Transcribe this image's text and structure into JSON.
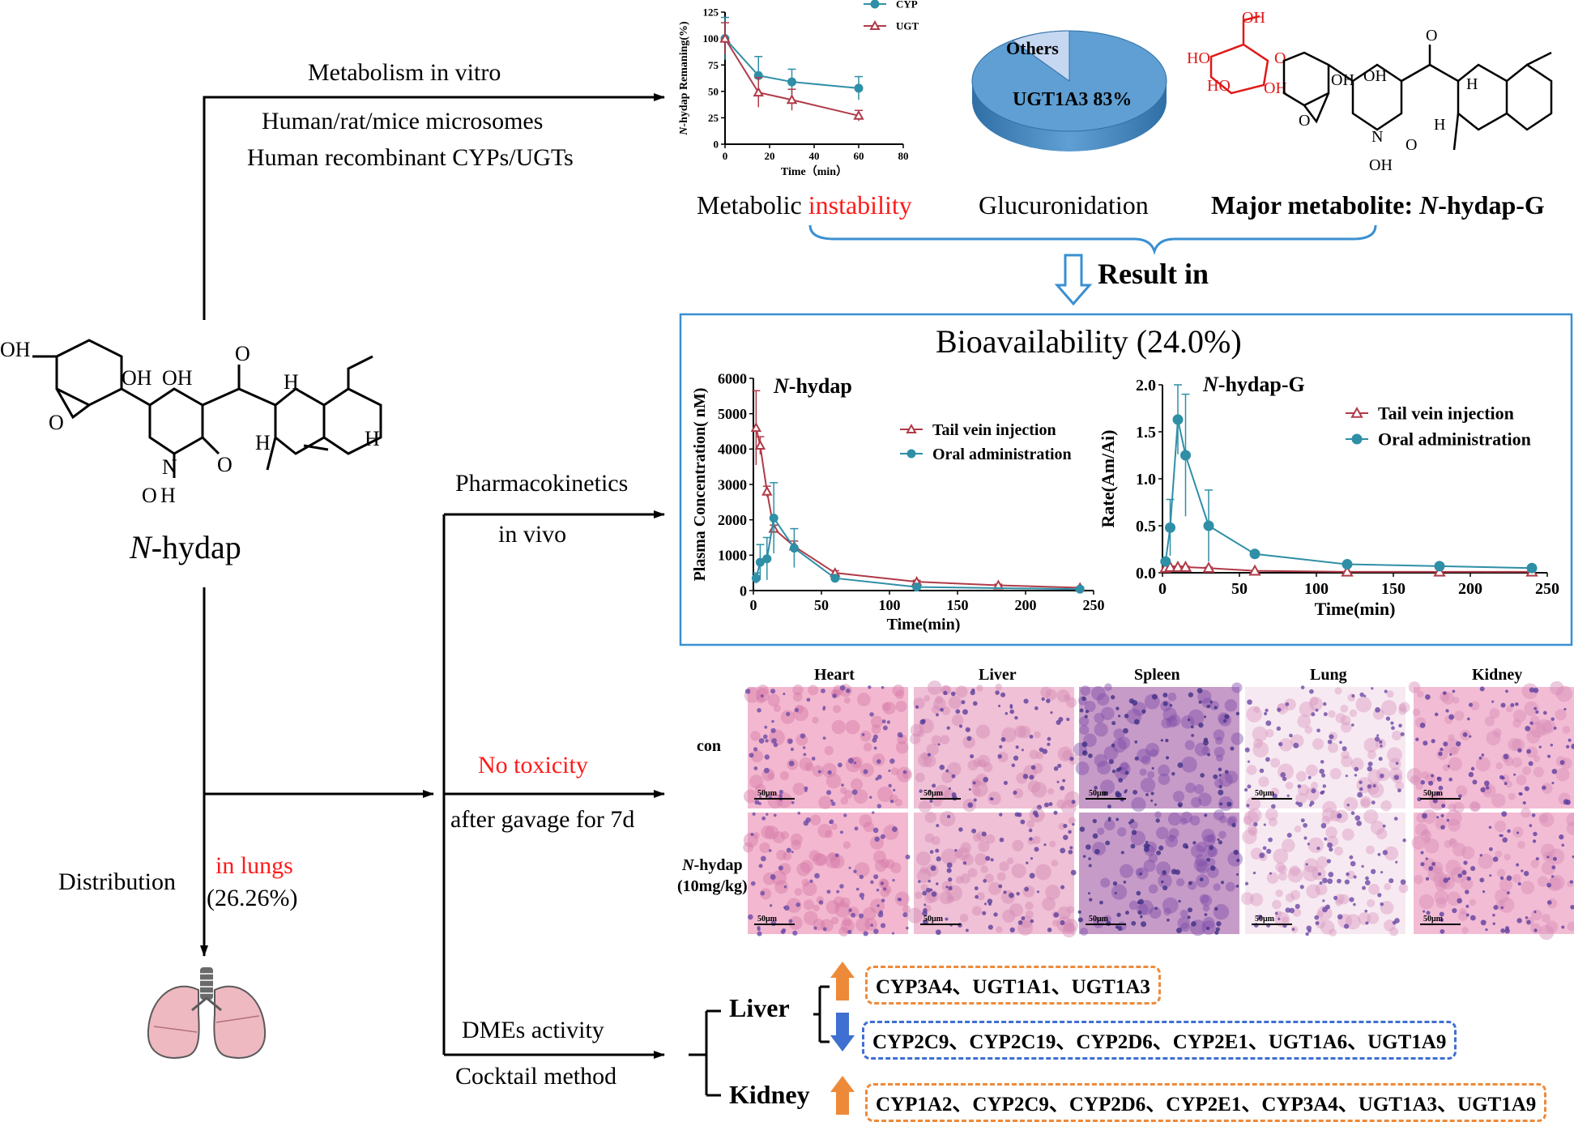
{
  "compound": {
    "name_italic": "N",
    "name_rest": "-hydap"
  },
  "metabolism": {
    "title": "Metabolism in vitro",
    "line1": "Human/rat/mice microsomes",
    "line2": "Human recombinant CYPs/UGTs"
  },
  "findings": {
    "instability_prefix": "Metabolic ",
    "instability_word": "instability",
    "glucuronidation": "Glucuronidation",
    "major_metabolite_prefix": "Major metabolite: ",
    "major_metabolite_italic": "N",
    "major_metabolite_rest": "-hydap-G",
    "result_in": "Result in"
  },
  "bioavailability": {
    "title": "Bioavailability (24.0%)"
  },
  "pharmacokinetics": {
    "line1": "Pharmacokinetics",
    "line2": "in vivo"
  },
  "toxicity": {
    "line1": "No toxicity",
    "line2": "after gavage for 7d"
  },
  "distribution": {
    "label": "Distribution",
    "organ": "in lungs",
    "percent": "(26.26%)"
  },
  "dmes": {
    "line1": "DMEs activity",
    "line2": "Cocktail method"
  },
  "histology": {
    "organs": [
      "Heart",
      "Liver",
      "Spleen",
      "Lung",
      "Kidney"
    ],
    "row_con": "con",
    "row_treat_italic": "N",
    "row_treat_rest": "-hydap",
    "row_treat_dose": "(10mg/kg)",
    "scale": "50μm"
  },
  "dme_results": {
    "liver": "Liver",
    "kidney": "Kidney",
    "liver_up": "CYP3A4、UGT1A1、UGT1A3",
    "liver_down": "CYP2C9、CYP2C19、CYP2D6、CYP2E1、UGT1A6、UGT1A9",
    "kidney_up": "CYP1A2、CYP2C9、CYP2D6、CYP2E1、CYP3A4、UGT1A3、UGT1A9",
    "colors": {
      "up": "#ed8a3a",
      "down": "#3f6fd1"
    }
  },
  "colors": {
    "teal": "#2e8fa6",
    "maroon": "#b03a48",
    "box": "#3a8fd1",
    "red": "#ff1a1a"
  },
  "chart_data": [
    {
      "type": "line",
      "ylabel_italic": "N",
      "ylabel": "-hydap Remaning(%)",
      "xlabel": "Time（min）",
      "xlim": [
        0,
        80
      ],
      "ylim": [
        0,
        125
      ],
      "xticks": [
        0,
        20,
        40,
        60,
        80
      ],
      "yticks": [
        0,
        25,
        50,
        75,
        100,
        125
      ],
      "legend_placement": "top-right",
      "series": [
        {
          "name": "CYP",
          "color": "#2e8fa6",
          "marker": "circle",
          "x": [
            0,
            15,
            30,
            60
          ],
          "y": [
            100,
            65,
            59,
            53
          ],
          "err": [
            20,
            18,
            12,
            11
          ]
        },
        {
          "name": "UGT",
          "color": "#b03a48",
          "marker": "triangle",
          "x": [
            0,
            15,
            30,
            60
          ],
          "y": [
            100,
            49,
            42,
            27
          ],
          "err": [
            15,
            14,
            10,
            5
          ]
        }
      ]
    },
    {
      "type": "pie",
      "slices": [
        {
          "label": "UGT1A3  83%",
          "value": 83,
          "color": "#5f9fd3"
        },
        {
          "label": "Others",
          "value": 17,
          "color": "#c6d7f2"
        }
      ]
    },
    {
      "type": "line",
      "title_italic": "N",
      "title": "-hydap",
      "ylabel": "Plasma Concentration( nM)",
      "xlabel": "Time(min)",
      "xlim": [
        0,
        250
      ],
      "ylim": [
        0,
        6000
      ],
      "xticks": [
        0,
        50,
        100,
        150,
        200,
        250
      ],
      "yticks": [
        0,
        1000,
        2000,
        3000,
        4000,
        5000,
        6000
      ],
      "legend_placement": "top-right",
      "series": [
        {
          "name": "Tail vein injection",
          "color": "#b03a48",
          "marker": "triangle",
          "x": [
            2,
            5,
            10,
            15,
            30,
            60,
            120,
            180,
            240
          ],
          "y": [
            4600,
            4100,
            2800,
            1750,
            1250,
            500,
            250,
            150,
            80
          ],
          "err": [
            1050,
            250,
            150,
            100,
            150,
            60,
            40,
            30,
            20
          ]
        },
        {
          "name": "Oral administration",
          "color": "#2e8fa6",
          "marker": "circle",
          "x": [
            2,
            5,
            10,
            15,
            30,
            60,
            120,
            240
          ],
          "y": [
            350,
            800,
            900,
            2050,
            1200,
            350,
            100,
            40
          ],
          "err": [
            150,
            500,
            600,
            1000,
            550,
            50,
            20,
            10
          ]
        }
      ]
    },
    {
      "type": "line",
      "title_italic": "N",
      "title": "-hydap-G",
      "ylabel": "Rate(Am/Ai)",
      "xlabel": "Time(min)",
      "xlim": [
        0,
        250
      ],
      "ylim": [
        0,
        2.0
      ],
      "xticks": [
        0,
        50,
        100,
        150,
        200,
        250
      ],
      "yticks": [
        0.0,
        0.5,
        1.0,
        1.5,
        2.0
      ],
      "legend_placement": "top-right",
      "series": [
        {
          "name": "Tail vein injection",
          "color": "#b03a48",
          "marker": "triangle",
          "x": [
            2,
            5,
            10,
            15,
            30,
            60,
            120,
            180,
            240
          ],
          "y": [
            0.05,
            0.06,
            0.06,
            0.06,
            0.05,
            0.02,
            0.01,
            0.01,
            0.01
          ],
          "err": [
            0.01,
            0.01,
            0.01,
            0.01,
            0.01,
            0.0,
            0.0,
            0.0,
            0.0
          ]
        },
        {
          "name": "Oral administration",
          "color": "#2e8fa6",
          "marker": "circle",
          "x": [
            2,
            5,
            10,
            15,
            30,
            60,
            120,
            180,
            240
          ],
          "y": [
            0.12,
            0.48,
            1.63,
            1.25,
            0.5,
            0.2,
            0.09,
            0.07,
            0.05
          ],
          "err": [
            0.03,
            0.3,
            0.37,
            0.65,
            0.38,
            0.03,
            0.01,
            0.01,
            0.01
          ]
        }
      ]
    }
  ]
}
